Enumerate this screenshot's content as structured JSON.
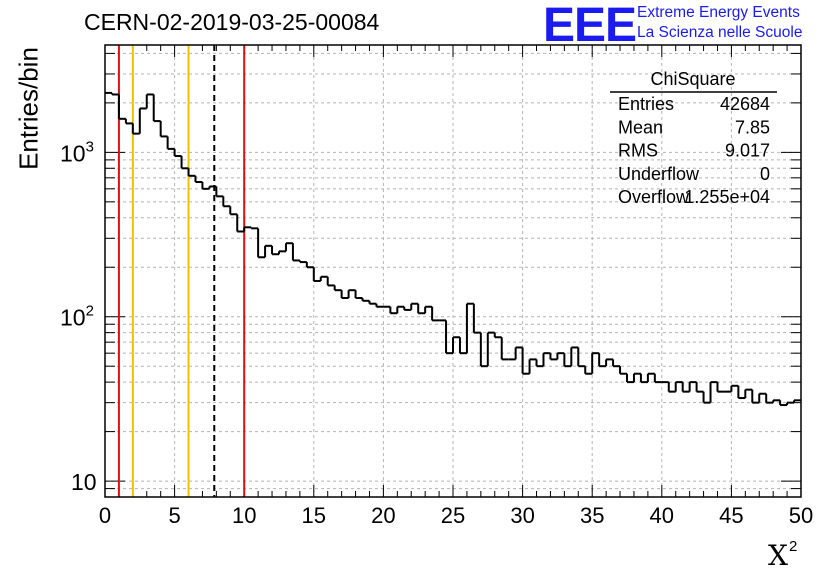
{
  "run_title": "CERN-02-2019-03-25-00084",
  "logo": {
    "mark": "EEE",
    "line1": "Extreme Energy Events",
    "line2": "La Scienza nelle Scuole"
  },
  "stats": {
    "title": "ChiSquare",
    "rows": [
      {
        "label": "Entries",
        "value": "42684"
      },
      {
        "label": "Mean",
        "value": "7.85"
      },
      {
        "label": "RMS",
        "value": "9.017"
      },
      {
        "label": "Underflow",
        "value": "0"
      },
      {
        "label": "Overflow",
        "value": "1.255e+04"
      }
    ]
  },
  "colors": {
    "histogram": "#000000",
    "red_cut": "#dd1111",
    "yellow_cut": "#f0c000",
    "mean_line": "#000000",
    "grid": "#b4b4b4",
    "logo": "#1b1bf0"
  },
  "chart_data": {
    "type": "histogram",
    "title": "",
    "xlabel": "X",
    "xlabel_superscript": "2",
    "ylabel": "Entries/bin",
    "xlim": [
      0,
      50
    ],
    "ylim": [
      8,
      4500
    ],
    "ylog": true,
    "grid": true,
    "xticks": [
      0,
      5,
      10,
      15,
      20,
      25,
      30,
      35,
      40,
      45,
      50
    ],
    "xtick_labels": [
      "0",
      "5",
      "10",
      "15",
      "20",
      "25",
      "30",
      "35",
      "40",
      "45",
      "50"
    ],
    "yticks": [
      10,
      100,
      1000
    ],
    "ytick_labels": [
      "10",
      "10",
      "10"
    ],
    "ytick_exponents": [
      "",
      "2",
      "3"
    ],
    "bin_width": 0.5,
    "bin_start": 0,
    "values": [
      2300,
      2250,
      1600,
      1500,
      1300,
      1850,
      2250,
      1550,
      1250,
      1050,
      950,
      800,
      720,
      660,
      600,
      620,
      540,
      470,
      420,
      330,
      350,
      345,
      230,
      270,
      240,
      250,
      280,
      220,
      215,
      200,
      165,
      175,
      155,
      145,
      130,
      145,
      130,
      125,
      120,
      115,
      115,
      105,
      115,
      110,
      120,
      105,
      115,
      95,
      95,
      60,
      75,
      60,
      120,
      80,
      50,
      80,
      75,
      55,
      55,
      65,
      45,
      55,
      50,
      60,
      55,
      60,
      50,
      65,
      50,
      45,
      60,
      50,
      55,
      50,
      45,
      40,
      45,
      40,
      45,
      40,
      40,
      35,
      40,
      35,
      40,
      35,
      30,
      40,
      35,
      35,
      38,
      32,
      36,
      30,
      34,
      30,
      31,
      29,
      30,
      31
    ],
    "vertical_lines": [
      {
        "x": 1,
        "color": "red",
        "style": "solid"
      },
      {
        "x": 2,
        "color": "yellow",
        "style": "solid"
      },
      {
        "x": 6,
        "color": "yellow",
        "style": "solid"
      },
      {
        "x": 7.85,
        "color": "black",
        "style": "dashed"
      },
      {
        "x": 10,
        "color": "red",
        "style": "solid"
      }
    ]
  }
}
